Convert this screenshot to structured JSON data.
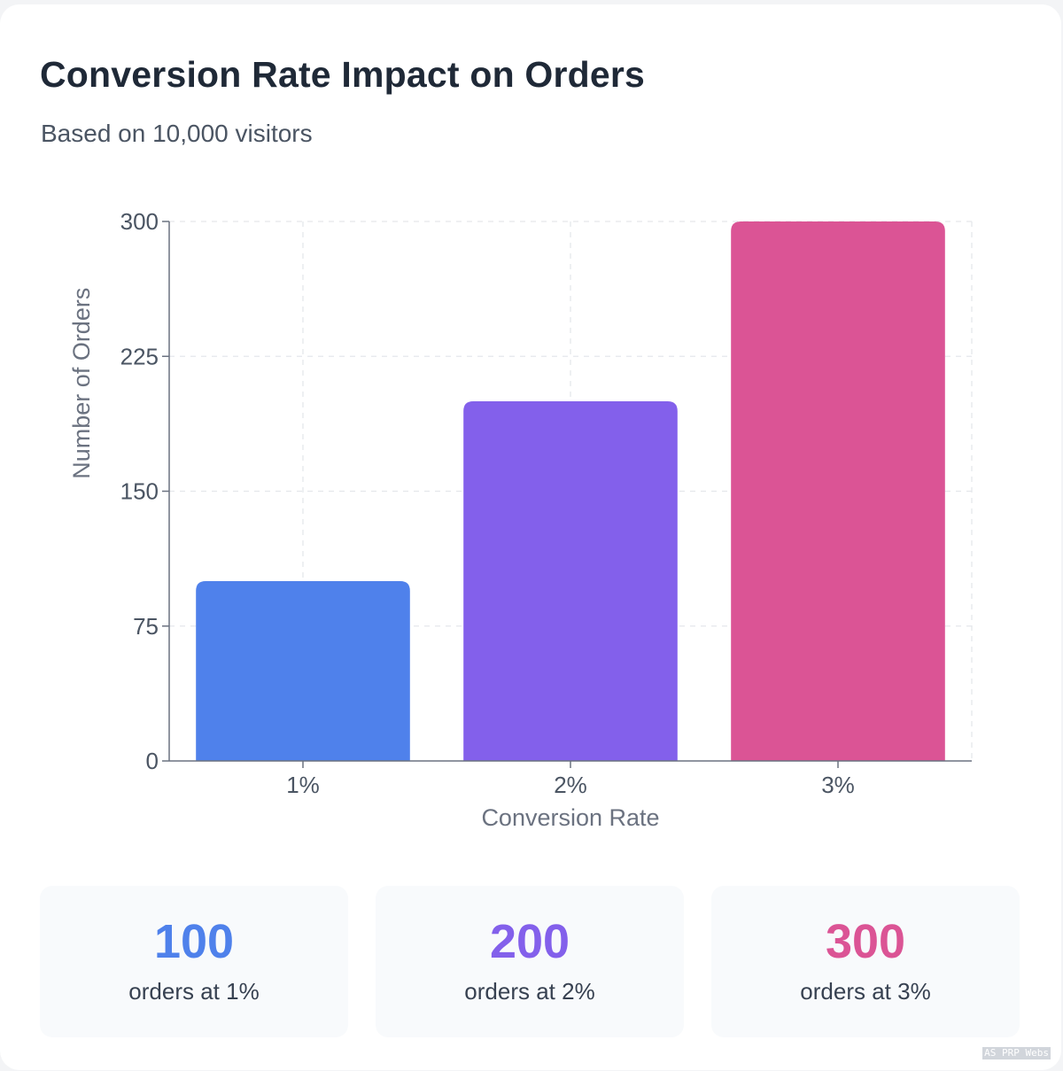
{
  "title": "Conversion Rate Impact on Orders",
  "subtitle": "Based on 10,000 visitors",
  "chart_data": {
    "type": "bar",
    "categories": [
      "1%",
      "2%",
      "3%"
    ],
    "values": [
      100,
      200,
      300
    ],
    "colors": [
      "#4f81eb",
      "#8360eb",
      "#db5495"
    ],
    "xlabel": "Conversion Rate",
    "ylabel": "Number of Orders",
    "ylim": [
      0,
      300
    ],
    "yticks": [
      0,
      75,
      150,
      225,
      300
    ],
    "grid": true,
    "legend": "none"
  },
  "stats": [
    {
      "value": "100",
      "label": "orders at 1%",
      "color": "#4f81eb"
    },
    {
      "value": "200",
      "label": "orders at 2%",
      "color": "#8360eb"
    },
    {
      "value": "300",
      "label": "orders at 3%",
      "color": "#db5495"
    }
  ],
  "watermark": "AS PRP Webs"
}
